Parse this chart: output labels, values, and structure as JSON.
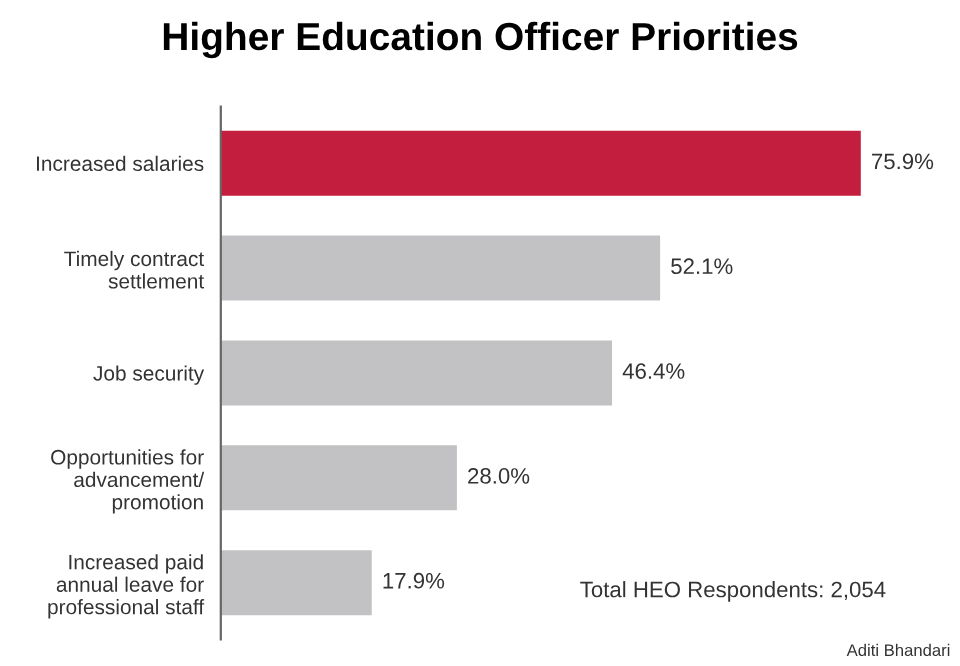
{
  "chart_data": {
    "type": "bar",
    "orientation": "horizontal",
    "title": "Higher Education Officer Priorities",
    "categories": [
      "Increased salaries",
      "Timely contract\nsettlement",
      "Job security",
      "Opportunities for\nadvancement/\npromotion",
      "Increased paid\nannual leave for\nprofessional staff"
    ],
    "values": [
      75.9,
      52.1,
      46.4,
      28.0,
      17.9
    ],
    "value_labels": [
      "75.9%",
      "52.1%",
      "46.4%",
      "28.0%",
      "17.9%"
    ],
    "colors": [
      "#c41e3f",
      "#c2c2c4",
      "#c2c2c4",
      "#c2c2c4",
      "#c2c2c4"
    ],
    "grid": false,
    "legend": false,
    "annotations": [
      "Total HEO Respondents: 2,054",
      "Aditi Bhandari"
    ]
  }
}
